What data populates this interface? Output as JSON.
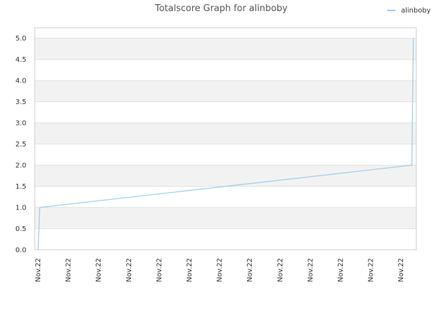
{
  "chart_data": {
    "type": "line",
    "title": "Totalscore Graph for alinboby",
    "xlabel": "",
    "ylabel": "",
    "ylim": [
      0,
      5.25
    ],
    "yticks": [
      "0.0",
      "0.5",
      "1.0",
      "1.5",
      "2.0",
      "2.5",
      "3.0",
      "3.5",
      "4.0",
      "4.5",
      "5.0"
    ],
    "xticks": [
      "Nov.22",
      "Nov.22",
      "Nov.22",
      "Nov.22",
      "Nov.22",
      "Nov.22",
      "Nov.22",
      "Nov.22",
      "Nov.22",
      "Nov.22",
      "Nov.22",
      "Nov.22",
      "Nov.22"
    ],
    "grid": true,
    "legend_position": "top-right",
    "series": [
      {
        "name": "alinboby",
        "color": "#99ccee",
        "points": [
          {
            "x": 0.0,
            "y": 0.0
          },
          {
            "x": 0.002,
            "y": 0.5
          },
          {
            "x": 0.004,
            "y": 1.0
          },
          {
            "x": 0.992,
            "y": 2.0
          },
          {
            "x": 0.994,
            "y": 3.5
          },
          {
            "x": 0.996,
            "y": 5.0
          }
        ]
      }
    ],
    "colors": {
      "band_alt": "#f2f2f2",
      "band": "#ffffff",
      "grid": "#e0e0e0",
      "axis": "#cccccc"
    }
  }
}
